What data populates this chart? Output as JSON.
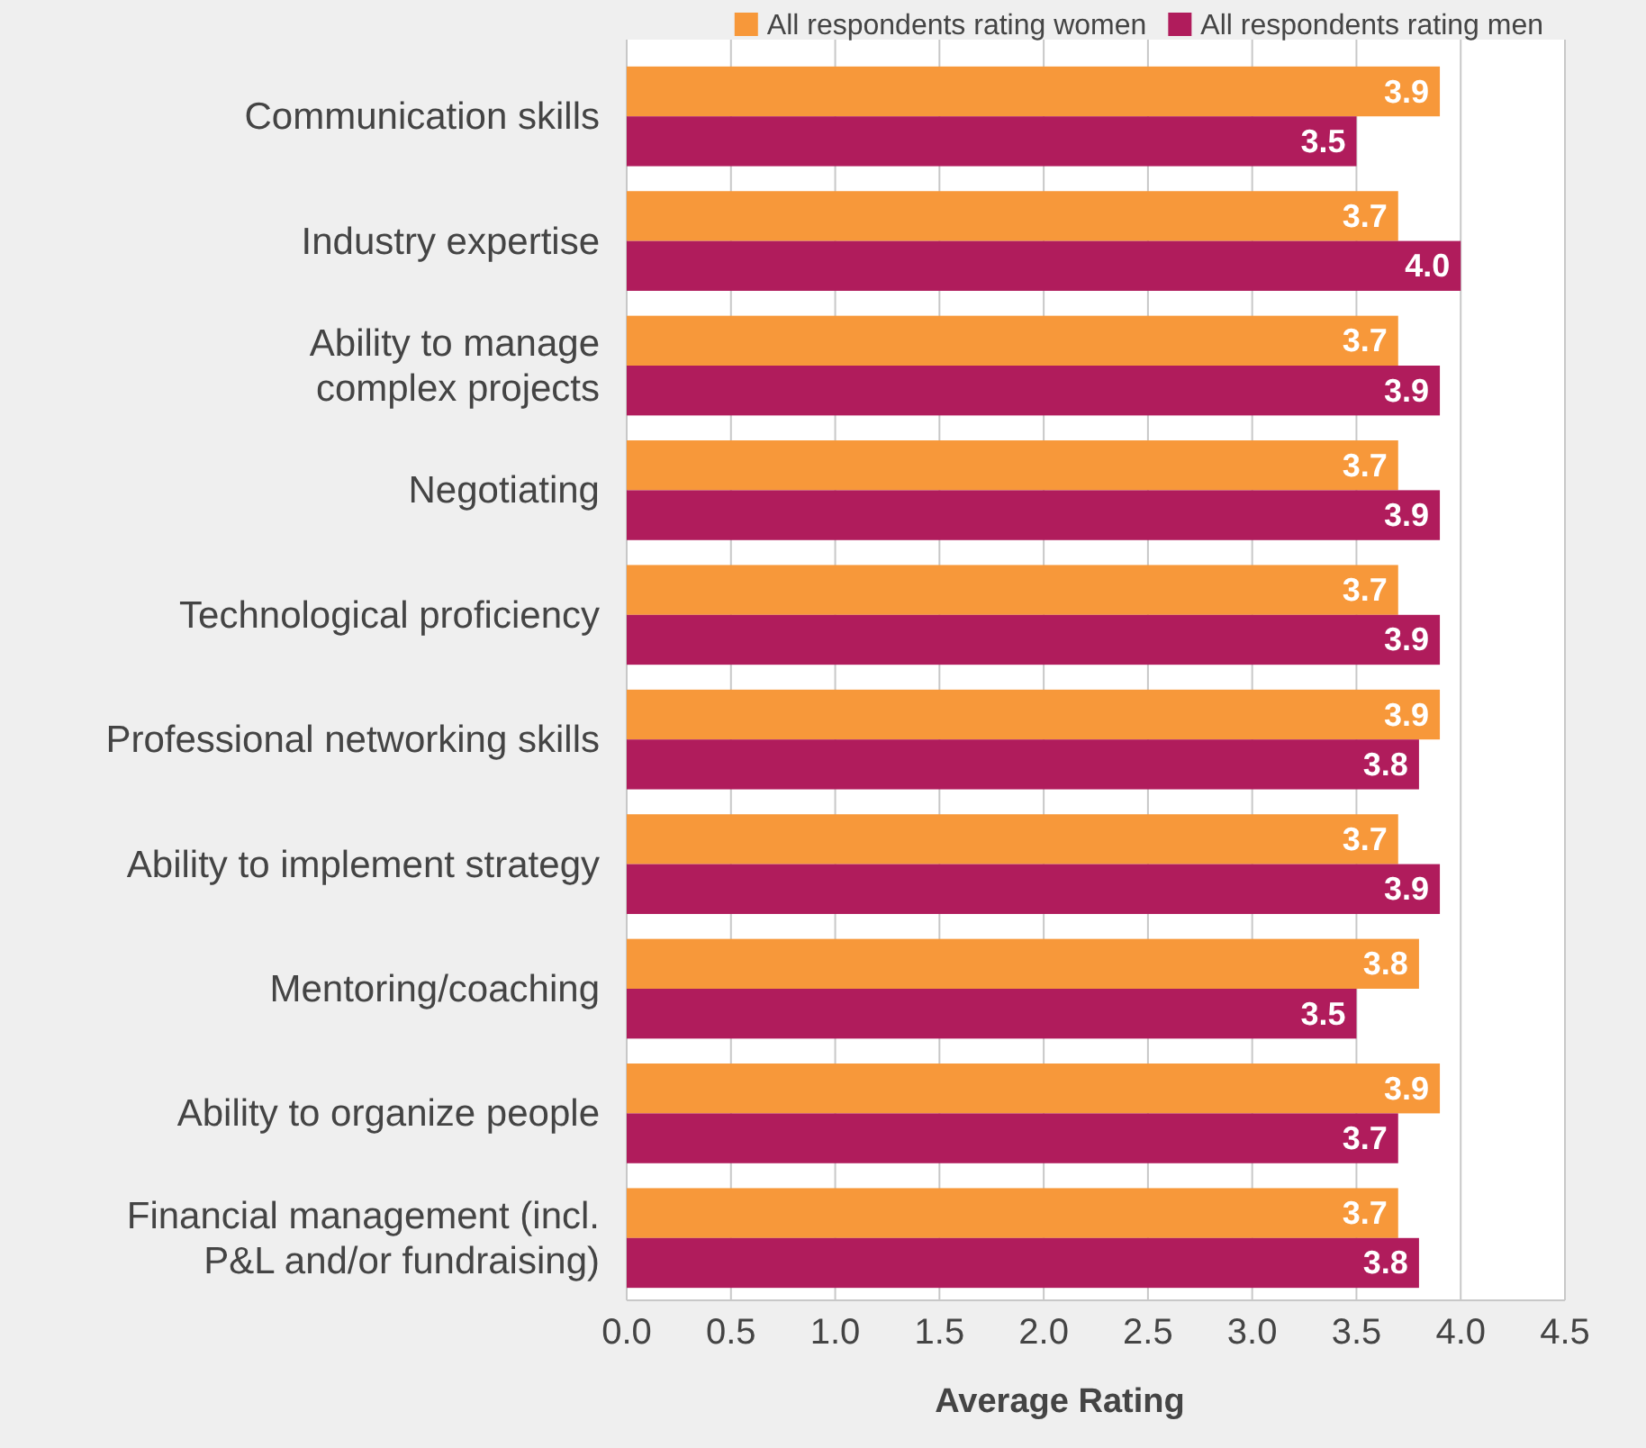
{
  "chart_data": {
    "type": "bar",
    "orientation": "horizontal",
    "xlabel": "Average Rating",
    "categories": [
      "Communication skills",
      "Industry expertise",
      "Ability to manage complex projects",
      "Negotiating",
      "Technological proficiency",
      "Professional networking skills",
      "Ability to implement strategy",
      "Mentoring/coaching",
      "Ability to organize people",
      "Financial management (incl. P&L and/or fundraising)"
    ],
    "series": [
      {
        "name": "All respondents rating women",
        "color": "#f7983a",
        "values": [
          3.9,
          3.7,
          3.7,
          3.7,
          3.7,
          3.9,
          3.7,
          3.8,
          3.9,
          3.7
        ],
        "value_labels": [
          "3.9",
          "3.7",
          "3.7",
          "3.7",
          "3.7",
          "3.9",
          "3.7",
          "3.8",
          "3.9",
          "3.7"
        ]
      },
      {
        "name": "All respondents rating men",
        "color": "#b01c5c",
        "values": [
          3.5,
          4.0,
          3.9,
          3.9,
          3.9,
          3.8,
          3.9,
          3.5,
          3.7,
          3.8
        ],
        "value_labels": [
          "3.5",
          "4.0",
          "3.9",
          "3.9",
          "3.9",
          "3.8",
          "3.9",
          "3.5",
          "3.7",
          "3.8"
        ]
      }
    ],
    "xlim": [
      0,
      4.5
    ],
    "xticks": [
      {
        "value": 0,
        "label": "0.0"
      },
      {
        "value": 0.5,
        "label": "0.5"
      },
      {
        "value": 1,
        "label": "1.0"
      },
      {
        "value": 1.5,
        "label": "1.5"
      },
      {
        "value": 2,
        "label": "2.0"
      },
      {
        "value": 2.5,
        "label": "2.5"
      },
      {
        "value": 3,
        "label": "3.0"
      },
      {
        "value": 3.5,
        "label": "3.5"
      },
      {
        "value": 4,
        "label": "4.0"
      },
      {
        "value": 4.5,
        "label": "4.5"
      }
    ],
    "grid": "x",
    "legend": "top right"
  }
}
